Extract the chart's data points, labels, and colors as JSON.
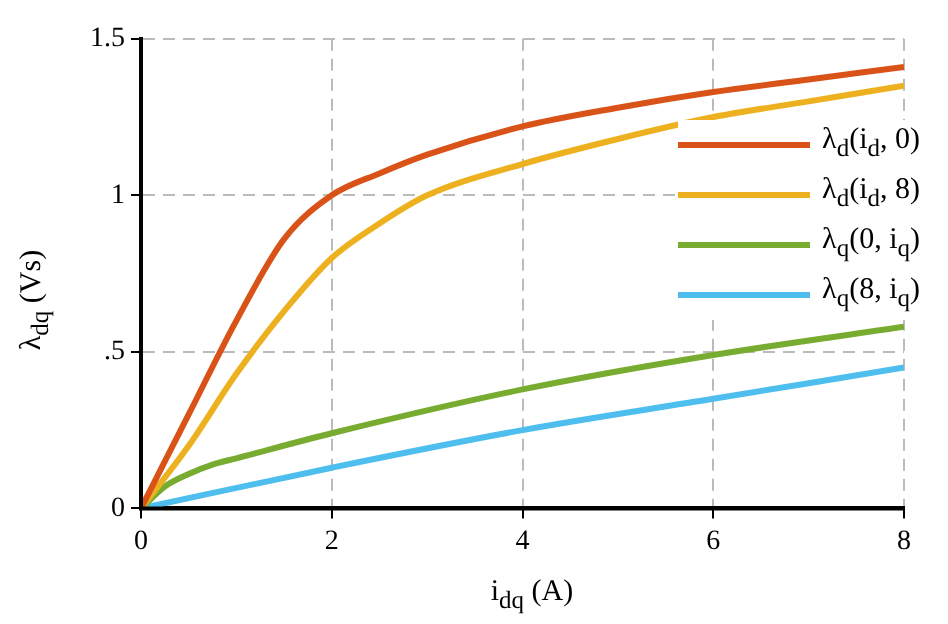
{
  "chart_data": {
    "type": "line",
    "xlabel": "i$_{dq}$ (A)",
    "ylabel": "λ$_{dq}$ (Vs)",
    "xlim": [
      0,
      8
    ],
    "xticks": [
      0,
      2,
      4,
      6,
      8
    ],
    "ylim": [
      0,
      1.5
    ],
    "yticks": [
      0,
      {
        "value": 0.5,
        "label": ".5"
      },
      1,
      1.5
    ],
    "grid": true,
    "legend": "right",
    "marker": "none",
    "line_style": "solid",
    "series": [
      {
        "name": "λ$_{d}$(i$_{d}$, 0)",
        "color": "#d95319",
        "x": [
          0,
          0.5,
          1,
          1.5,
          2,
          2.5,
          3,
          4,
          5,
          6,
          7,
          8
        ],
        "values": [
          0,
          0.3,
          0.6,
          0.86,
          1.0,
          1.07,
          1.13,
          1.22,
          1.28,
          1.33,
          1.37,
          1.41
        ]
      },
      {
        "name": "λ$_{d}$(i$_{d}$, 8)",
        "color": "#edb120",
        "x": [
          0,
          0.5,
          1,
          1.5,
          2,
          2.5,
          3,
          4,
          5,
          6,
          7,
          8
        ],
        "values": [
          0,
          0.2,
          0.43,
          0.63,
          0.8,
          0.91,
          1.0,
          1.1,
          1.18,
          1.25,
          1.3,
          1.35
        ]
      },
      {
        "name": "λ$_{q}$(0, i$_{q}$)",
        "color": "#77ac30",
        "x": [
          0,
          0.25,
          0.5,
          0.75,
          1,
          2,
          4,
          6,
          8
        ],
        "values": [
          0,
          0.07,
          0.11,
          0.14,
          0.16,
          0.24,
          0.38,
          0.49,
          0.58
        ]
      },
      {
        "name": "λ$_{q}$(8, i$_{q}$)",
        "color": "#4dbeee",
        "x": [
          0,
          2,
          4,
          6,
          8
        ],
        "values": [
          0,
          0.13,
          0.25,
          0.35,
          0.45
        ]
      }
    ]
  }
}
